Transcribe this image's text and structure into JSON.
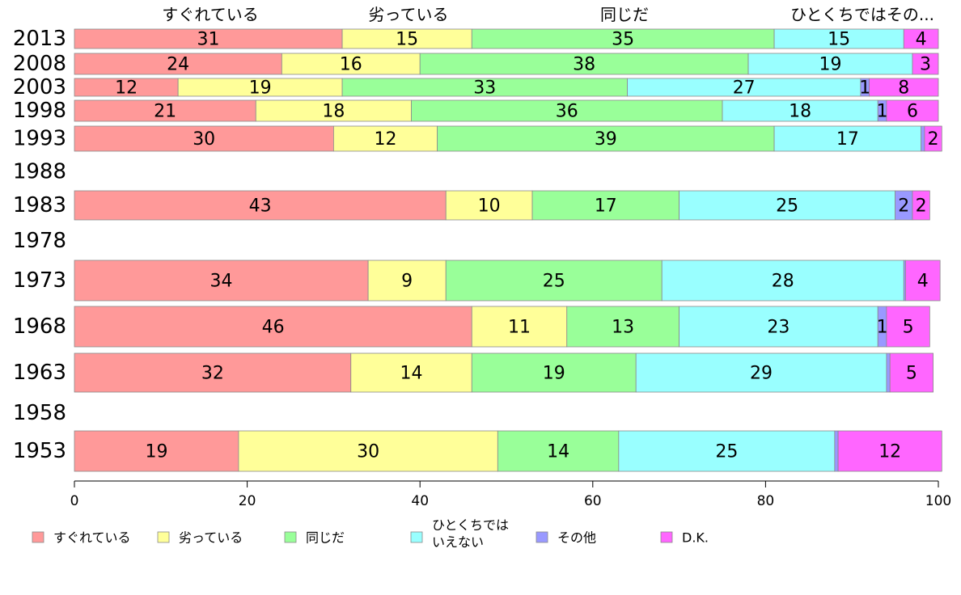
{
  "chart_data": {
    "type": "bar",
    "orientation": "horizontal",
    "stacked": true,
    "categories": [
      "2013",
      "2008",
      "2003",
      "1998",
      "1993",
      "1988",
      "1983",
      "1978",
      "1973",
      "1968",
      "1963",
      "1958",
      "1953"
    ],
    "series": [
      {
        "name": "すぐれている",
        "color": "#ff9999",
        "values": [
          31,
          24,
          12,
          21,
          30,
          null,
          43,
          null,
          34,
          46,
          32,
          null,
          19
        ]
      },
      {
        "name": "劣っている",
        "color": "#ffff99",
        "values": [
          15,
          16,
          19,
          18,
          12,
          null,
          10,
          null,
          9,
          11,
          14,
          null,
          30
        ]
      },
      {
        "name": "同じだ",
        "color": "#99ff99",
        "values": [
          35,
          38,
          33,
          36,
          39,
          null,
          17,
          null,
          25,
          13,
          19,
          null,
          14
        ]
      },
      {
        "name": "ひとくちではいえない",
        "color": "#99ffff",
        "values": [
          15,
          19,
          27,
          18,
          17,
          null,
          25,
          null,
          28,
          23,
          29,
          null,
          25
        ]
      },
      {
        "name": "その他",
        "color": "#9999ff",
        "values": [
          0,
          0,
          1,
          1,
          0.4,
          null,
          2,
          null,
          0.2,
          1,
          0.4,
          null,
          0.4
        ]
      },
      {
        "name": "D.K.",
        "color": "#ff66ff",
        "values": [
          4,
          3,
          8,
          6,
          2,
          null,
          2,
          null,
          4,
          5,
          5,
          null,
          12
        ]
      }
    ],
    "top_labels": [
      "すぐれている",
      "劣っている",
      "同じだ",
      "ひとくちではその..."
    ],
    "legend_labels": [
      "すぐれている",
      "劣っている",
      "同じだ",
      "ひとくちでは\nいえない",
      "その他",
      "D.K."
    ],
    "xlim": [
      0,
      100
    ],
    "xticks": [
      0,
      20,
      40,
      60,
      80,
      100
    ],
    "legend_position": "bottom",
    "grid": false
  }
}
